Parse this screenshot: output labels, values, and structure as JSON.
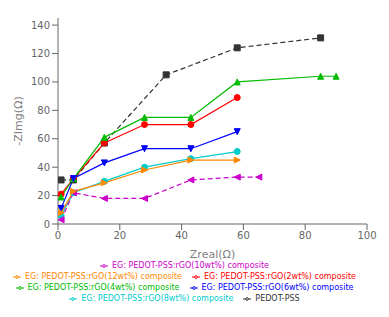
{
  "chart_data": {
    "type": "line",
    "xlabel": "Zreal(Ω)",
    "ylabel": "-ZImg(Ω)",
    "xlim": [
      0,
      100
    ],
    "ylim": [
      0,
      145
    ],
    "xticks": [
      0,
      20,
      40,
      60,
      80,
      100
    ],
    "yticks": [
      0,
      20,
      40,
      60,
      80,
      100,
      120,
      140
    ],
    "grid": false,
    "legend": "bottom",
    "series": [
      {
        "name": "PEDOT-PSS",
        "color": "#333333",
        "marker": "square",
        "line_style": "dashed",
        "x": [
          1,
          5,
          15,
          35,
          58,
          85
        ],
        "values": [
          31,
          31,
          57,
          105,
          124,
          131
        ]
      },
      {
        "name": "EG: PEDOT-PSS:rGO(2wt%) composite",
        "color": "#ff0000",
        "marker": "circle",
        "line_style": "solid",
        "x": [
          1,
          5,
          15,
          28,
          43,
          58
        ],
        "values": [
          21,
          32,
          57,
          70,
          70,
          89
        ]
      },
      {
        "name": "EG: PEDOT-PSS:rGO(4wt%) composite",
        "color": "#00bb00",
        "marker": "triangle-up",
        "line_style": "solid",
        "x": [
          1,
          5,
          15,
          28,
          43,
          58,
          85,
          90
        ],
        "values": [
          19,
          32,
          61,
          75,
          75,
          100,
          104,
          104
        ]
      },
      {
        "name": "EG: PEDOT-PSS:rGO(6wt%) composite",
        "color": "#0000ff",
        "marker": "triangle-down",
        "line_style": "solid",
        "x": [
          1,
          5,
          15,
          28,
          43,
          58
        ],
        "values": [
          11,
          32,
          43,
          53,
          53,
          65
        ]
      },
      {
        "name": "EG: PEDOT-PSS:rGO(8wt%) composite",
        "color": "#00cccc",
        "marker": "circle",
        "line_style": "solid",
        "x": [
          1,
          5,
          15,
          28,
          43,
          58
        ],
        "values": [
          6,
          22,
          30,
          40,
          46,
          51
        ]
      },
      {
        "name": "EG: PEDOT-PSS:rGO(10wt%) composite",
        "color": "#cc00cc",
        "marker": "triangle-left",
        "line_style": "dashed",
        "x": [
          1,
          5,
          15,
          28,
          43,
          58,
          65
        ],
        "values": [
          3,
          22,
          18,
          18,
          31,
          33,
          33
        ]
      },
      {
        "name": "EG: PEDOT-PSS:rGO(12wt%) composite",
        "color": "#ff8800",
        "marker": "triangle-right",
        "line_style": "solid",
        "x": [
          1,
          5,
          15,
          28,
          43,
          58
        ],
        "values": [
          8,
          23,
          29,
          38,
          45,
          45
        ]
      }
    ]
  }
}
